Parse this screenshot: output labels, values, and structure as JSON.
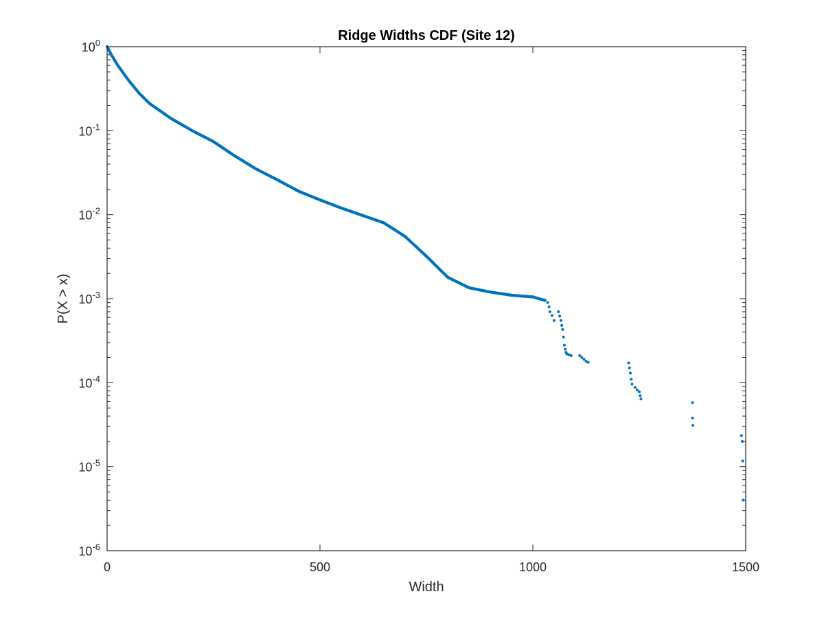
{
  "chart_data": {
    "type": "scatter",
    "title": "Ridge Widths CDF (Site 12)",
    "xlabel": "Width",
    "ylabel": "P(X > x)",
    "xlim": [
      0,
      1500
    ],
    "ylim": [
      1e-06,
      1
    ],
    "y_scale": "log",
    "grid": false,
    "legend": "none",
    "x_ticks": [
      0,
      500,
      1000,
      1500
    ],
    "x_tick_labels": [
      "0",
      "500",
      "1000",
      "1500"
    ],
    "y_ticks": [
      {
        "value": 1e-06,
        "base": "10",
        "exp": "-6"
      },
      {
        "value": 1e-05,
        "base": "10",
        "exp": "-5"
      },
      {
        "value": 0.0001,
        "base": "10",
        "exp": "-4"
      },
      {
        "value": 0.001,
        "base": "10",
        "exp": "-3"
      },
      {
        "value": 0.01,
        "base": "10",
        "exp": "-2"
      },
      {
        "value": 0.1,
        "base": "10",
        "exp": "-1"
      },
      {
        "value": 1,
        "base": "10",
        "exp": "0"
      }
    ],
    "series": [
      {
        "color": "#0072BD",
        "curve": [
          [
            0,
            1.0
          ],
          [
            10,
            0.8
          ],
          [
            25,
            0.6
          ],
          [
            50,
            0.4
          ],
          [
            75,
            0.28
          ],
          [
            100,
            0.21
          ],
          [
            150,
            0.14
          ],
          [
            200,
            0.1
          ],
          [
            250,
            0.074
          ],
          [
            300,
            0.05
          ],
          [
            350,
            0.035
          ],
          [
            400,
            0.026
          ],
          [
            450,
            0.019
          ],
          [
            500,
            0.015
          ],
          [
            550,
            0.012
          ],
          [
            600,
            0.0098
          ],
          [
            650,
            0.008
          ],
          [
            700,
            0.0055
          ],
          [
            750,
            0.0032
          ],
          [
            800,
            0.0018
          ],
          [
            850,
            0.00135
          ],
          [
            900,
            0.0012
          ],
          [
            950,
            0.0011
          ],
          [
            1000,
            0.00105
          ],
          [
            1030,
            0.00095
          ]
        ],
        "points": [
          [
            1035,
            0.0009
          ],
          [
            1038,
            0.0008
          ],
          [
            1040,
            0.0007
          ],
          [
            1045,
            0.00063
          ],
          [
            1050,
            0.00055
          ],
          [
            1060,
            0.0007
          ],
          [
            1063,
            0.00062
          ],
          [
            1066,
            0.00055
          ],
          [
            1068,
            0.00048
          ],
          [
            1070,
            0.00043
          ],
          [
            1072,
            0.00035
          ],
          [
            1074,
            0.00028
          ],
          [
            1076,
            0.00025
          ],
          [
            1078,
            0.00023
          ],
          [
            1080,
            0.00022
          ],
          [
            1085,
            0.000215
          ],
          [
            1090,
            0.00021
          ],
          [
            1110,
            0.00021
          ],
          [
            1115,
            0.0002
          ],
          [
            1120,
            0.00019
          ],
          [
            1125,
            0.00018
          ],
          [
            1130,
            0.000175
          ],
          [
            1225,
            0.000172
          ],
          [
            1227,
            0.00015
          ],
          [
            1229,
            0.00013
          ],
          [
            1231,
            0.00011
          ],
          [
            1233,
            9.6e-05
          ],
          [
            1240,
            8.8e-05
          ],
          [
            1245,
            8.2e-05
          ],
          [
            1250,
            7.8e-05
          ],
          [
            1252,
            7e-05
          ],
          [
            1254,
            6.4e-05
          ],
          [
            1375,
            5.8e-05
          ],
          [
            1375,
            3.8e-05
          ],
          [
            1376,
            3.1e-05
          ],
          [
            1490,
            2.35e-05
          ],
          [
            1492,
            2e-05
          ],
          [
            1493,
            1.17e-05
          ],
          [
            1494,
            4e-06
          ]
        ]
      }
    ]
  }
}
